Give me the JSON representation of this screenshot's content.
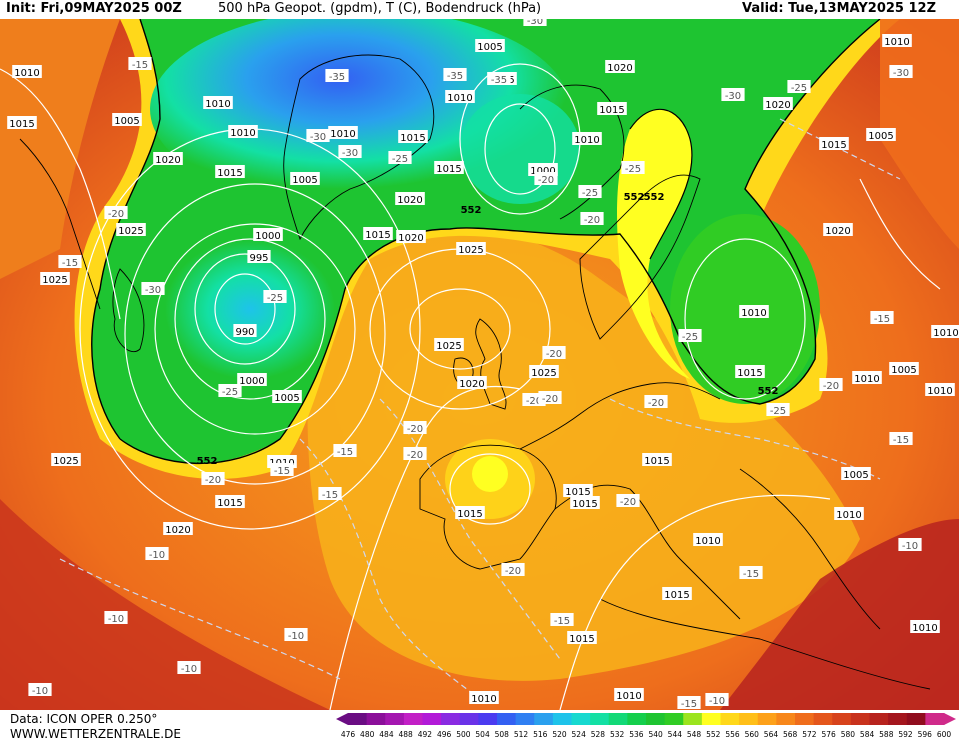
{
  "header": {
    "init": "Init: Fri,09MAY2025 00Z",
    "title": "500 hPa Geopot. (gpdm), T (C), Bodendruck (hPa)",
    "valid": "Valid: Tue,13MAY2025 12Z"
  },
  "footer": {
    "data_source": "Data: ICON OPER 0.250°",
    "website": "WWW.WETTERZENTRALE.DE"
  },
  "legend": {
    "ticks": [
      "476",
      "480",
      "484",
      "488",
      "492",
      "496",
      "500",
      "504",
      "508",
      "512",
      "516",
      "520",
      "524",
      "528",
      "532",
      "536",
      "540",
      "544",
      "548",
      "552",
      "556",
      "560",
      "564",
      "568",
      "572",
      "576",
      "580",
      "584",
      "588",
      "592",
      "596",
      "600"
    ],
    "colors": [
      "#6a0d83",
      "#8b0f9a",
      "#a416b0",
      "#c21fc6",
      "#b21ad8",
      "#8a2be2",
      "#6a32e8",
      "#4b3bf0",
      "#3360f2",
      "#2f7ff2",
      "#2aa0ee",
      "#1ec3ea",
      "#17d9d0",
      "#13e0a4",
      "#12d977",
      "#14cf4c",
      "#1ec431",
      "#30cc24",
      "#9be41e",
      "#ffff21",
      "#ffd81a",
      "#ffbf19",
      "#fda11a",
      "#f7871b",
      "#ef6d1c",
      "#e4561c",
      "#d7431c",
      "#c8321d",
      "#b7231e",
      "#a4161e",
      "#900d1e",
      "#cf2a8a"
    ]
  },
  "isobar_labels": [
    {
      "text": "1010"
    },
    {
      "text": "1015"
    },
    {
      "text": "1005"
    },
    {
      "text": "1010"
    },
    {
      "text": "1020"
    },
    {
      "text": "1015"
    },
    {
      "text": "1010"
    },
    {
      "text": "1005"
    },
    {
      "text": "1025"
    },
    {
      "text": "1025"
    },
    {
      "text": "995"
    },
    {
      "text": "1000"
    },
    {
      "text": "990"
    },
    {
      "text": "1000"
    },
    {
      "text": "1005"
    },
    {
      "text": "1010"
    },
    {
      "text": "1015"
    },
    {
      "text": "1005"
    },
    {
      "text": "1005"
    },
    {
      "text": "1010"
    },
    {
      "text": "1010"
    },
    {
      "text": "1015"
    },
    {
      "text": "1015"
    },
    {
      "text": "1020"
    },
    {
      "text": "1015"
    },
    {
      "text": "1020"
    },
    {
      "text": "1025"
    },
    {
      "text": "1005"
    },
    {
      "text": "1000"
    },
    {
      "text": "1010"
    },
    {
      "text": "1015"
    },
    {
      "text": "1020"
    },
    {
      "text": "1010"
    },
    {
      "text": "1020"
    },
    {
      "text": "1015"
    },
    {
      "text": "1020"
    },
    {
      "text": "1005"
    },
    {
      "text": "1015"
    },
    {
      "text": "1010"
    },
    {
      "text": "1020"
    },
    {
      "text": "1025"
    },
    {
      "text": "1025"
    },
    {
      "text": "1010"
    },
    {
      "text": "1015"
    },
    {
      "text": "1015"
    },
    {
      "text": "1015"
    },
    {
      "text": "1015"
    },
    {
      "text": "1010"
    },
    {
      "text": "1005"
    },
    {
      "text": "1010"
    },
    {
      "text": "1010"
    },
    {
      "text": "1020"
    },
    {
      "text": "1025"
    },
    {
      "text": "1015"
    },
    {
      "text": "1015"
    },
    {
      "text": "1010"
    },
    {
      "text": "1010"
    },
    {
      "text": "1010"
    },
    {
      "text": "1010"
    }
  ],
  "temp_labels": [
    {
      "text": "-30"
    },
    {
      "text": "-15"
    },
    {
      "text": "-35"
    },
    {
      "text": "-35"
    },
    {
      "text": "-35"
    },
    {
      "text": "-30"
    },
    {
      "text": "-25"
    },
    {
      "text": "-30"
    },
    {
      "text": "-30"
    },
    {
      "text": "-20"
    },
    {
      "text": "-15"
    },
    {
      "text": "-30"
    },
    {
      "text": "-25"
    },
    {
      "text": "-25"
    },
    {
      "text": "-25"
    },
    {
      "text": "-20"
    },
    {
      "text": "-25"
    },
    {
      "text": "-30"
    },
    {
      "text": "-25"
    },
    {
      "text": "-15"
    },
    {
      "text": "-20"
    },
    {
      "text": "-20"
    },
    {
      "text": "-20"
    },
    {
      "text": "-25"
    },
    {
      "text": "-20"
    },
    {
      "text": "-25"
    },
    {
      "text": "-20"
    },
    {
      "text": "-15"
    },
    {
      "text": "-20"
    },
    {
      "text": "-20"
    },
    {
      "text": "-15"
    },
    {
      "text": "-15"
    },
    {
      "text": "-20"
    },
    {
      "text": "-15"
    },
    {
      "text": "-20"
    },
    {
      "text": "-15"
    },
    {
      "text": "-20"
    },
    {
      "text": "-10"
    },
    {
      "text": "-10"
    },
    {
      "text": "-10"
    },
    {
      "text": "-10"
    },
    {
      "text": "-15"
    },
    {
      "text": "-15"
    },
    {
      "text": "-10"
    },
    {
      "text": "-10"
    },
    {
      "text": "-10"
    },
    {
      "text": "-20"
    }
  ],
  "contour_labels": [
    {
      "text": "552"
    },
    {
      "text": "552"
    },
    {
      "text": "552"
    },
    {
      "text": "552"
    },
    {
      "text": "552"
    }
  ]
}
